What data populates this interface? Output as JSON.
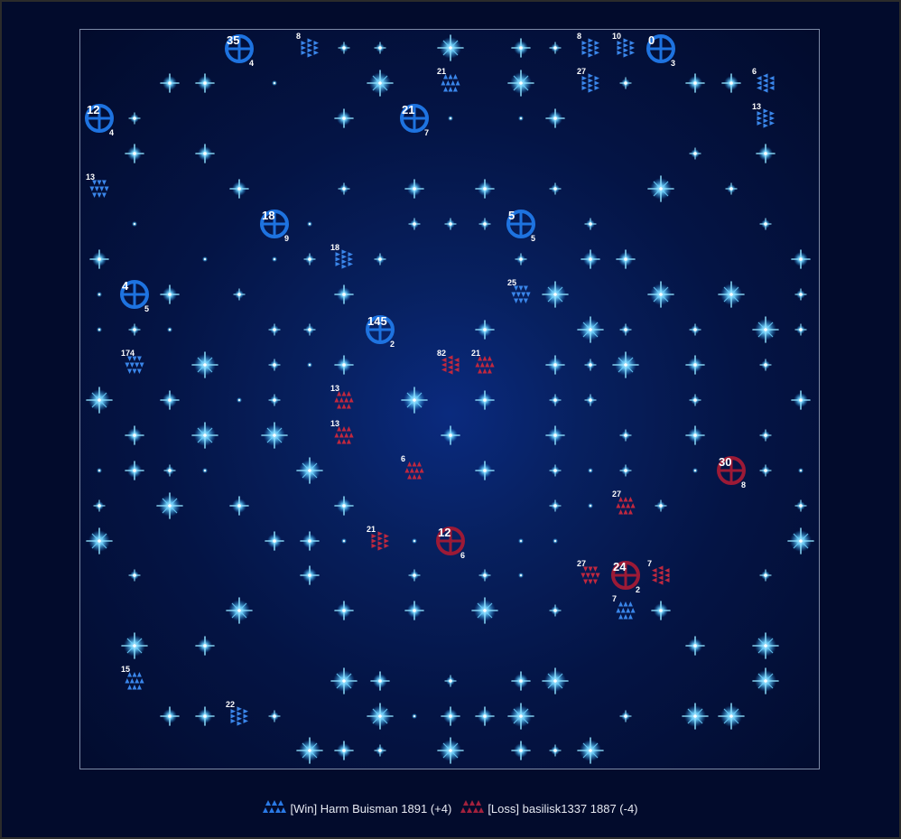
{
  "colors": {
    "blue": "#1e73e0",
    "red": "#9c1a36",
    "star": "#39b8ff",
    "label": "#ffffff"
  },
  "planets": [
    {
      "owner": "blue",
      "ships": "35",
      "growth": "4"
    },
    {
      "owner": "blue",
      "ships": "0",
      "growth": "3"
    },
    {
      "owner": "blue",
      "ships": "12",
      "growth": "4"
    },
    {
      "owner": "blue",
      "ships": "21",
      "growth": "7"
    },
    {
      "owner": "blue",
      "ships": "18",
      "growth": "9"
    },
    {
      "owner": "blue",
      "ships": "5",
      "growth": "5"
    },
    {
      "owner": "blue",
      "ships": "4",
      "growth": "5"
    },
    {
      "owner": "blue",
      "ships": "145",
      "growth": "2"
    },
    {
      "owner": "red",
      "ships": "30",
      "growth": "8"
    },
    {
      "owner": "red",
      "ships": "12",
      "growth": "6"
    },
    {
      "owner": "red",
      "ships": "24",
      "growth": "2"
    }
  ],
  "fleets": [
    {
      "owner": "blue",
      "ships": "8",
      "dir": "right"
    },
    {
      "owner": "blue",
      "ships": "8",
      "dir": "right"
    },
    {
      "owner": "blue",
      "ships": "10",
      "dir": "right"
    },
    {
      "owner": "blue",
      "ships": "21",
      "dir": "up"
    },
    {
      "owner": "blue",
      "ships": "27",
      "dir": "right"
    },
    {
      "owner": "blue",
      "ships": "6",
      "dir": "left"
    },
    {
      "owner": "blue",
      "ships": "13",
      "dir": "right"
    },
    {
      "owner": "blue",
      "ships": "13",
      "dir": "down"
    },
    {
      "owner": "blue",
      "ships": "18",
      "dir": "right"
    },
    {
      "owner": "blue",
      "ships": "25",
      "dir": "down"
    },
    {
      "owner": "blue",
      "ships": "174",
      "dir": "down"
    },
    {
      "owner": "blue",
      "ships": "7",
      "dir": "up"
    },
    {
      "owner": "blue",
      "ships": "15",
      "dir": "up"
    },
    {
      "owner": "blue",
      "ships": "22",
      "dir": "right"
    },
    {
      "owner": "red",
      "ships": "82",
      "dir": "left"
    },
    {
      "owner": "red",
      "ships": "21",
      "dir": "up"
    },
    {
      "owner": "red",
      "ships": "13",
      "dir": "up"
    },
    {
      "owner": "red",
      "ships": "13",
      "dir": "up"
    },
    {
      "owner": "red",
      "ships": "6",
      "dir": "up"
    },
    {
      "owner": "red",
      "ships": "27",
      "dir": "up"
    },
    {
      "owner": "red",
      "ships": "21",
      "dir": "right"
    },
    {
      "owner": "red",
      "ships": "27",
      "dir": "down"
    },
    {
      "owner": "red",
      "ships": "7",
      "dir": "left"
    }
  ],
  "legend": {
    "player1": "[Win] Harm Buisman 1891 (+4)",
    "player2": "[Loss] basilisk1337 1887 (-4)"
  }
}
